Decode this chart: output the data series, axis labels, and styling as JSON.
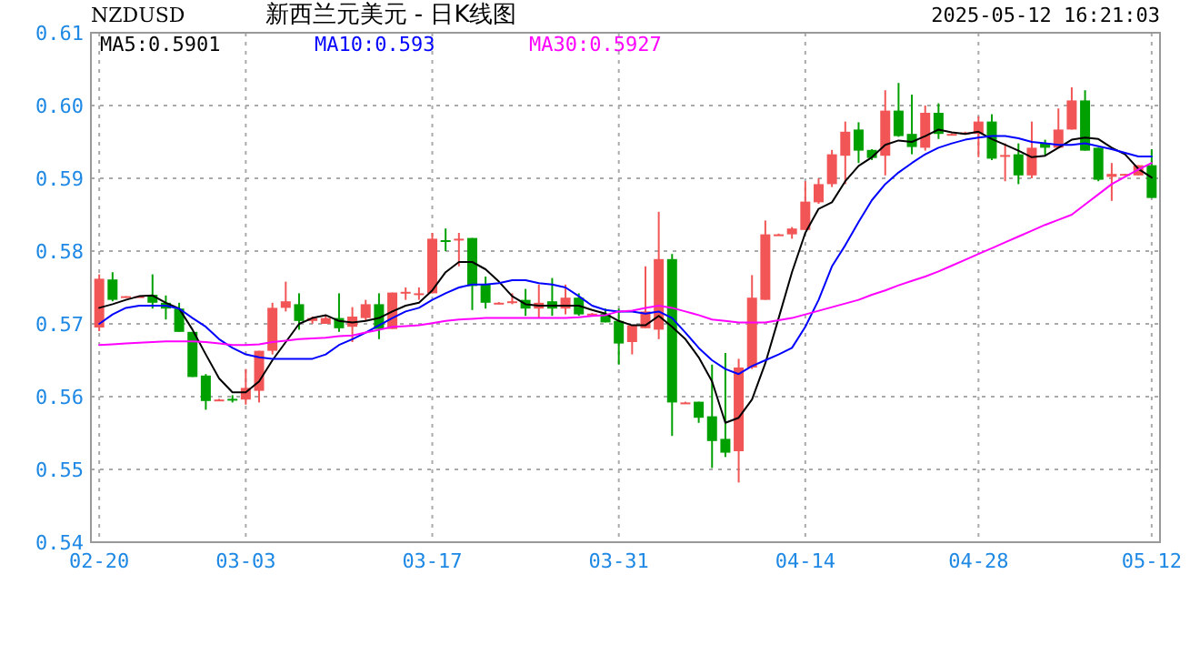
{
  "chart_data": {
    "type": "candlestick",
    "title": "新西兰元美元 - 日K线图",
    "annotations": [
      "NZDUSD",
      "2025-05-12 16:21:03"
    ],
    "categories": [
      "02-20",
      null,
      null,
      null,
      null,
      null,
      null,
      null,
      null,
      null,
      null,
      "03-03",
      null,
      null,
      null,
      null,
      null,
      null,
      null,
      null,
      null,
      null,
      null,
      null,
      null,
      "03-17",
      null,
      null,
      null,
      null,
      null,
      null,
      null,
      null,
      null,
      null,
      null,
      null,
      null,
      "03-31",
      null,
      null,
      null,
      null,
      null,
      null,
      null,
      null,
      null,
      null,
      null,
      null,
      null,
      "04-14",
      null,
      null,
      null,
      null,
      null,
      null,
      null,
      null,
      null,
      null,
      null,
      null,
      "04-28",
      null,
      null,
      null,
      null,
      null,
      null,
      null,
      null,
      null,
      null,
      null,
      null,
      "05-12"
    ],
    "ohlc": [
      [
        0.5695,
        0.5768,
        0.569,
        0.5762
      ],
      [
        0.5761,
        0.5771,
        0.5731,
        0.5733
      ],
      [
        0.5737,
        0.5738,
        0.5736,
        0.5738
      ],
      [
        0.5738,
        0.5739,
        0.5737,
        0.5738
      ],
      [
        0.574,
        0.5768,
        0.5721,
        0.5729
      ],
      [
        0.5729,
        0.5739,
        0.5706,
        0.5721
      ],
      [
        0.5721,
        0.5729,
        0.5689,
        0.5689
      ],
      [
        0.5689,
        0.5689,
        0.5627,
        0.5627
      ],
      [
        0.5629,
        0.5631,
        0.5582,
        0.5594
      ],
      [
        0.5595,
        0.5597,
        0.5595,
        0.5596
      ],
      [
        0.5597,
        0.5602,
        0.5592,
        0.5595
      ],
      [
        0.5596,
        0.5638,
        0.5589,
        0.5612
      ],
      [
        0.5608,
        0.5663,
        0.5592,
        0.5663
      ],
      [
        0.5663,
        0.5729,
        0.5658,
        0.5722
      ],
      [
        0.5722,
        0.5758,
        0.5717,
        0.5731
      ],
      [
        0.5727,
        0.5742,
        0.5692,
        0.5704
      ],
      [
        0.5704,
        0.571,
        0.57,
        0.5708
      ],
      [
        0.57,
        0.5712,
        0.57,
        0.5708
      ],
      [
        0.5708,
        0.5742,
        0.5689,
        0.5694
      ],
      [
        0.5696,
        0.5723,
        0.5675,
        0.571
      ],
      [
        0.5708,
        0.5733,
        0.5704,
        0.5727
      ],
      [
        0.5727,
        0.5742,
        0.5679,
        0.5693
      ],
      [
        0.5693,
        0.5743,
        0.5693,
        0.5743
      ],
      [
        0.5742,
        0.575,
        0.5733,
        0.5744
      ],
      [
        0.5741,
        0.575,
        0.5733,
        0.5742
      ],
      [
        0.5742,
        0.5825,
        0.5742,
        0.5817
      ],
      [
        0.5815,
        0.5831,
        0.58,
        0.5813
      ],
      [
        0.5815,
        0.5825,
        0.5779,
        0.5817
      ],
      [
        0.5818,
        0.5818,
        0.5719,
        0.5752
      ],
      [
        0.5754,
        0.5765,
        0.5721,
        0.5729
      ],
      [
        0.5728,
        0.573,
        0.5727,
        0.5729
      ],
      [
        0.573,
        0.5742,
        0.5727,
        0.5731
      ],
      [
        0.5733,
        0.5748,
        0.5711,
        0.5721
      ],
      [
        0.5721,
        0.5754,
        0.5708,
        0.5729
      ],
      [
        0.5731,
        0.5763,
        0.5711,
        0.5721
      ],
      [
        0.5721,
        0.5754,
        0.5713,
        0.5736
      ],
      [
        0.5736,
        0.5742,
        0.5711,
        0.5713
      ],
      [
        0.5713,
        0.5715,
        0.5712,
        0.5714
      ],
      [
        0.5714,
        0.5721,
        0.5702,
        0.5702
      ],
      [
        0.5704,
        0.5721,
        0.5644,
        0.5673
      ],
      [
        0.5675,
        0.5698,
        0.5658,
        0.5698
      ],
      [
        0.5694,
        0.5779,
        0.5694,
        0.5717
      ],
      [
        0.5692,
        0.5854,
        0.5679,
        0.5789
      ],
      [
        0.5789,
        0.5796,
        0.5546,
        0.5592
      ],
      [
        0.5591,
        0.5593,
        0.5591,
        0.5592
      ],
      [
        0.5593,
        0.5593,
        0.5564,
        0.5571
      ],
      [
        0.5573,
        0.5644,
        0.5502,
        0.5539
      ],
      [
        0.5542,
        0.566,
        0.5517,
        0.5523
      ],
      [
        0.5525,
        0.5652,
        0.5482,
        0.564
      ],
      [
        0.564,
        0.5767,
        0.5638,
        0.5736
      ],
      [
        0.5733,
        0.5842,
        0.5733,
        0.5823
      ],
      [
        0.5822,
        0.5824,
        0.5822,
        0.5823
      ],
      [
        0.5823,
        0.5833,
        0.5817,
        0.5831
      ],
      [
        0.5829,
        0.5896,
        0.5829,
        0.5868
      ],
      [
        0.5867,
        0.59,
        0.5865,
        0.5892
      ],
      [
        0.5892,
        0.5939,
        0.5888,
        0.5933
      ],
      [
        0.5931,
        0.5978,
        0.5892,
        0.5964
      ],
      [
        0.5967,
        0.5977,
        0.5921,
        0.5938
      ],
      [
        0.5939,
        0.594,
        0.5925,
        0.5928
      ],
      [
        0.5931,
        0.6021,
        0.5904,
        0.5993
      ],
      [
        0.5993,
        0.6031,
        0.5957,
        0.5958
      ],
      [
        0.5961,
        0.6015,
        0.5933,
        0.5943
      ],
      [
        0.5942,
        0.6,
        0.5938,
        0.599
      ],
      [
        0.599,
        0.6003,
        0.5954,
        0.5961
      ],
      [
        0.596,
        0.5962,
        0.596,
        0.5961
      ],
      [
        0.5962,
        0.5964,
        0.5962,
        0.5963
      ],
      [
        0.5961,
        0.5985,
        0.5929,
        0.5978
      ],
      [
        0.5978,
        0.5988,
        0.5925,
        0.5927
      ],
      [
        0.593,
        0.5948,
        0.5896,
        0.5932
      ],
      [
        0.5933,
        0.5948,
        0.5892,
        0.5904
      ],
      [
        0.5904,
        0.5978,
        0.59,
        0.5942
      ],
      [
        0.5948,
        0.5953,
        0.5931,
        0.5942
      ],
      [
        0.5942,
        0.5996,
        0.5942,
        0.5967
      ],
      [
        0.5967,
        0.6025,
        0.5967,
        0.6007
      ],
      [
        0.6007,
        0.6021,
        0.5938,
        0.5938
      ],
      [
        0.5942,
        0.5942,
        0.5896,
        0.5898
      ],
      [
        0.5902,
        0.5921,
        0.5869,
        0.5906
      ],
      [
        0.5904,
        0.5906,
        0.5904,
        0.5906
      ],
      [
        0.5904,
        0.5918,
        0.5904,
        0.5918
      ],
      [
        0.5918,
        0.594,
        0.5873,
        0.5873
      ]
    ],
    "colors": [
      "#f25555",
      "#00a000",
      "#f25555",
      "#f25555",
      "#00a000",
      "#00a000",
      "#00a000",
      "#00a000",
      "#00a000",
      "#f25555",
      "#00a000",
      "#f25555",
      "#f25555",
      "#f25555",
      "#f25555",
      "#00a000",
      "#f25555",
      "#f25555",
      "#00a000",
      "#f25555",
      "#f25555",
      "#00a000",
      "#f25555",
      "#f25555",
      "#f25555",
      "#f25555",
      "#00a000",
      "#f25555",
      "#00a000",
      "#00a000",
      "#f25555",
      "#f25555",
      "#00a000",
      "#f25555",
      "#00a000",
      "#f25555",
      "#00a000",
      "#f25555",
      "#00a000",
      "#00a000",
      "#f25555",
      "#f25555",
      "#f25555",
      "#00a000",
      "#f25555",
      "#00a000",
      "#00a000",
      "#00a000",
      "#f25555",
      "#f25555",
      "#f25555",
      "#f25555",
      "#f25555",
      "#f25555",
      "#f25555",
      "#f25555",
      "#f25555",
      "#00a000",
      "#00a000",
      "#f25555",
      "#00a000",
      "#00a000",
      "#f25555",
      "#00a000",
      "#f25555",
      "#f25555",
      "#f25555",
      "#00a000",
      "#f25555",
      "#00a000",
      "#f25555",
      "#00a000",
      "#f25555",
      "#f25555",
      "#00a000",
      "#00a000",
      "#f25555",
      "#f25555",
      "#f25555",
      "#00a000"
    ],
    "series": [
      {
        "name": "MA5:0.5901",
        "type": "line",
        "color": "#000000",
        "values": [
          0.5722,
          0.5727,
          0.5733,
          0.5738,
          0.5739,
          0.5729,
          0.5721,
          0.5692,
          0.5658,
          0.5625,
          0.5606,
          0.5606,
          0.5621,
          0.565,
          0.5675,
          0.57,
          0.5708,
          0.5712,
          0.5704,
          0.5702,
          0.5704,
          0.5708,
          0.5717,
          0.5725,
          0.5729,
          0.5746,
          0.5771,
          0.5785,
          0.5785,
          0.5775,
          0.5758,
          0.5738,
          0.5727,
          0.5725,
          0.5725,
          0.5725,
          0.5725,
          0.5719,
          0.5714,
          0.5704,
          0.5698,
          0.5698,
          0.5711,
          0.5696,
          0.5679,
          0.5654,
          0.5621,
          0.5564,
          0.5571,
          0.5596,
          0.5646,
          0.5708,
          0.5771,
          0.5825,
          0.5858,
          0.5867,
          0.5896,
          0.5917,
          0.5929,
          0.5946,
          0.5952,
          0.595,
          0.5958,
          0.5967,
          0.5963,
          0.5961,
          0.5964,
          0.5954,
          0.5946,
          0.5938,
          0.5929,
          0.5931,
          0.5942,
          0.5953,
          0.5956,
          0.5954,
          0.5942,
          0.5933,
          0.5913,
          0.5901
        ]
      },
      {
        "name": "MA10:0.593",
        "type": "line",
        "color": "#0000ff",
        "values": [
          0.57,
          0.5713,
          0.5722,
          0.5725,
          0.5725,
          0.5725,
          0.5721,
          0.5708,
          0.5696,
          0.5679,
          0.5667,
          0.5658,
          0.5654,
          0.5652,
          0.5652,
          0.5652,
          0.5652,
          0.5658,
          0.5671,
          0.5679,
          0.5688,
          0.5698,
          0.5708,
          0.5717,
          0.5722,
          0.5733,
          0.5742,
          0.575,
          0.5754,
          0.5754,
          0.5756,
          0.576,
          0.576,
          0.5756,
          0.5754,
          0.575,
          0.5738,
          0.5725,
          0.5719,
          0.5717,
          0.5717,
          0.5714,
          0.5717,
          0.5708,
          0.5688,
          0.5667,
          0.565,
          0.5638,
          0.5631,
          0.5642,
          0.565,
          0.5658,
          0.5667,
          0.5696,
          0.5733,
          0.5779,
          0.5808,
          0.584,
          0.587,
          0.5892,
          0.5908,
          0.5921,
          0.5933,
          0.5942,
          0.5948,
          0.5953,
          0.5956,
          0.5958,
          0.5958,
          0.5955,
          0.595,
          0.5948,
          0.5946,
          0.5946,
          0.5948,
          0.5944,
          0.594,
          0.5935,
          0.593,
          0.593
        ]
      },
      {
        "name": "MA30:0.5927",
        "type": "line",
        "color": "#ff00ff",
        "values": [
          0.5671,
          0.5672,
          0.5673,
          0.5674,
          0.5675,
          0.5676,
          0.5676,
          0.5676,
          0.5675,
          0.5673,
          0.5671,
          0.5671,
          0.5672,
          0.5675,
          0.5677,
          0.5679,
          0.568,
          0.5681,
          0.5683,
          0.5684,
          0.5688,
          0.5692,
          0.5696,
          0.5697,
          0.5698,
          0.5701,
          0.5704,
          0.5706,
          0.5707,
          0.5708,
          0.5708,
          0.5708,
          0.5708,
          0.5708,
          0.5708,
          0.5708,
          0.5709,
          0.5711,
          0.5712,
          0.5717,
          0.5718,
          0.5722,
          0.5725,
          0.5722,
          0.5717,
          0.5712,
          0.5706,
          0.5704,
          0.5702,
          0.5702,
          0.5702,
          0.5705,
          0.5708,
          0.5713,
          0.5718,
          0.5723,
          0.5728,
          0.5733,
          0.574,
          0.5746,
          0.5753,
          0.5759,
          0.5765,
          0.5772,
          0.578,
          0.5788,
          0.5796,
          0.5804,
          0.5812,
          0.582,
          0.5828,
          0.5836,
          0.5843,
          0.585,
          0.5864,
          0.5878,
          0.5892,
          0.5902,
          0.5912,
          0.5921
        ]
      }
    ],
    "ylim": [
      0.54,
      0.61
    ],
    "yticks": [
      0.54,
      0.55,
      0.56,
      0.57,
      0.58,
      0.59,
      {
        "value": 0.6,
        "label": "0.60"
      },
      0.61
    ],
    "grid": true,
    "legend": "top left"
  }
}
